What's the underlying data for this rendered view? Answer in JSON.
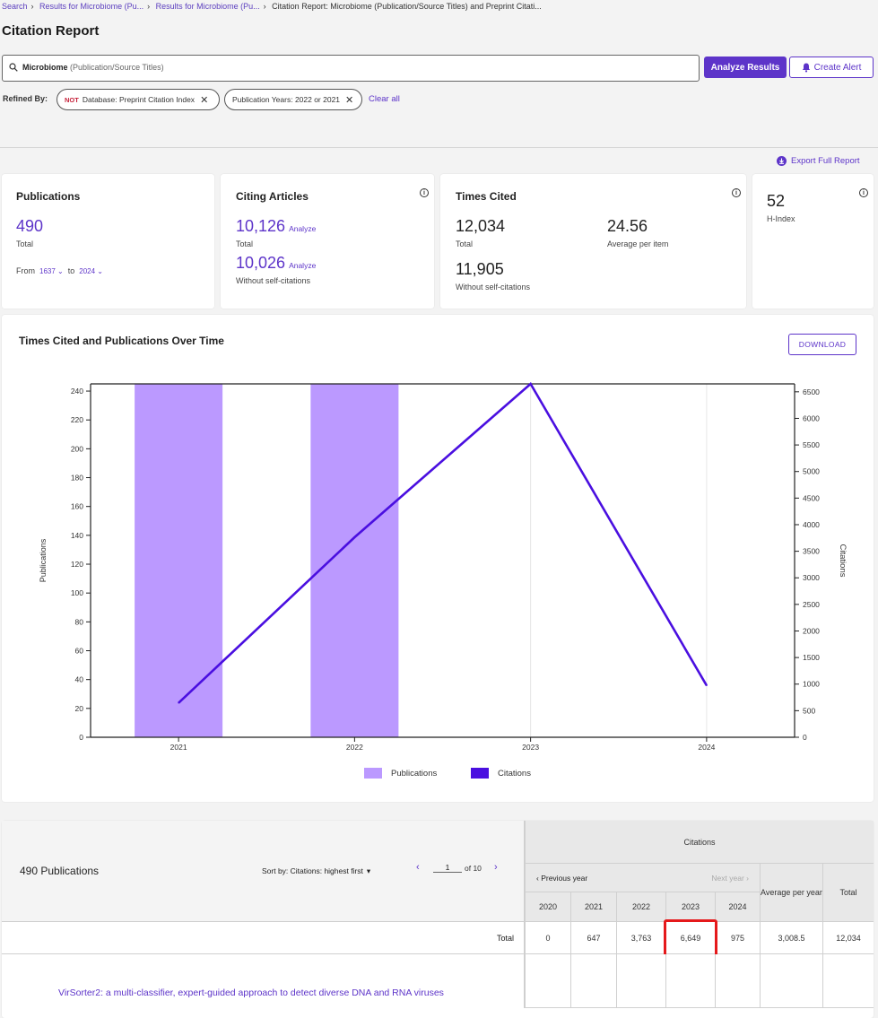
{
  "breadcrumb": {
    "items": [
      "Search",
      "Results for Microbiome (Pu...",
      "Results for Microbiome (Pu..."
    ],
    "current": "Citation Report: Microbiome (Publication/Source Titles) and Preprint Citati..."
  },
  "page_title": "Citation Report",
  "search": {
    "term": "Microbiome",
    "field": "(Publication/Source Titles)",
    "icon": "search-icon"
  },
  "buttons": {
    "analyze": "Analyze Results",
    "alert": "Create Alert",
    "export": "Export Full Report",
    "download": "DOWNLOAD"
  },
  "refined": {
    "label": "Refined By:",
    "chips": [
      {
        "prefix": "NOT",
        "text": "Database: Preprint Citation Index"
      },
      {
        "prefix": "",
        "text": "Publication Years: 2022 or 2021"
      }
    ],
    "clear": "Clear all"
  },
  "cards": {
    "publications": {
      "title": "Publications",
      "value": "490",
      "sub": "Total",
      "from_label": "From",
      "from": "1637",
      "to_label": "to",
      "to": "2024"
    },
    "citing": {
      "title": "Citing Articles",
      "total": "10,126",
      "total_label": "Total",
      "without": "10,026",
      "without_label": "Without self-citations",
      "analyze": "Analyze"
    },
    "times_cited": {
      "title": "Times Cited",
      "total": "12,034",
      "total_label": "Total",
      "avg": "24.56",
      "avg_label": "Average per item",
      "without": "11,905",
      "without_label": "Without self-citations"
    },
    "hindex": {
      "value": "52",
      "label": "H-Index"
    }
  },
  "chart": {
    "title": "Times Cited and Publications Over Time",
    "legend": [
      "Publications",
      "Citations"
    ]
  },
  "chart_data": {
    "type": "bar",
    "categories": [
      "2021",
      "2022",
      "2023",
      "2024"
    ],
    "series": [
      {
        "name": "Publications",
        "type": "bar",
        "axis": "left",
        "values": [
          245,
          245,
          0,
          0
        ]
      },
      {
        "name": "Citations",
        "type": "line",
        "axis": "right",
        "values": [
          647,
          3763,
          6649,
          975
        ]
      }
    ],
    "ylabel": "Publications",
    "y2label": "Citations",
    "ylim": [
      0,
      245
    ],
    "y2lim": [
      0,
      6649
    ],
    "yticks": [
      0,
      20,
      40,
      60,
      80,
      100,
      120,
      140,
      160,
      180,
      200,
      220,
      240
    ],
    "y2ticks": [
      0,
      500,
      1000,
      1500,
      2000,
      2500,
      3000,
      3500,
      4000,
      4500,
      5000,
      5500,
      6000,
      6500
    ],
    "grid": true,
    "legend_position": "bottom-center",
    "colors": {
      "Publications": "#bb99ff",
      "Citations": "#4a0fe0"
    }
  },
  "table": {
    "count": "490 Publications",
    "sort": "Sort by: Citations: highest first",
    "page": "1",
    "of": "of 10",
    "citations_header": "Citations",
    "prev": "Previous year",
    "next": "Next year",
    "avg_header": "Average per year",
    "total_header": "Total",
    "years": [
      "2020",
      "2021",
      "2022",
      "2023",
      "2024"
    ],
    "total_row": {
      "label": "Total",
      "values": [
        "0",
        "647",
        "3,763",
        "6,649",
        "975"
      ],
      "avg": "3,008.5",
      "total": "12,034"
    },
    "first_item": "VirSorter2: a multi-classifier, expert-guided approach to detect diverse DNA and RNA viruses"
  }
}
